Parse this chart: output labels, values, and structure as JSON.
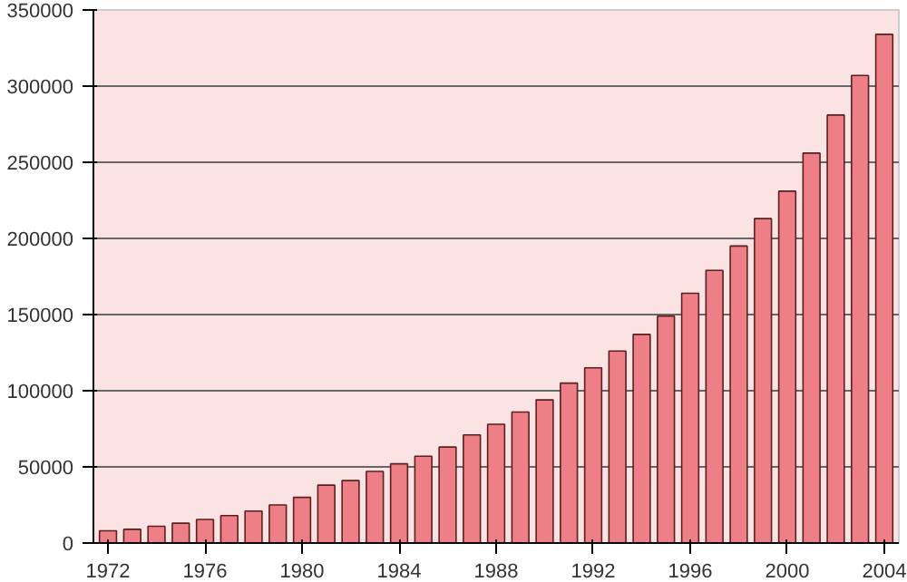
{
  "chart_data": {
    "type": "bar",
    "x": [
      1972,
      1973,
      1974,
      1975,
      1976,
      1977,
      1978,
      1979,
      1980,
      1981,
      1982,
      1983,
      1984,
      1985,
      1986,
      1987,
      1988,
      1989,
      1990,
      1991,
      1992,
      1993,
      1994,
      1995,
      1996,
      1997,
      1998,
      1999,
      2000,
      2001,
      2002,
      2003,
      2004
    ],
    "values": [
      8000,
      9000,
      11000,
      13000,
      15500,
      18000,
      21000,
      25000,
      30000,
      38000,
      41000,
      47000,
      52000,
      57000,
      63000,
      71000,
      78000,
      86000,
      94000,
      105000,
      115000,
      126000,
      137000,
      149000,
      164000,
      179000,
      195000,
      213000,
      231000,
      256000,
      281000,
      307000,
      334000
    ],
    "color": "#ef7f86",
    "xlim": [
      1971.4,
      2004.6
    ],
    "xticks": [
      1972,
      1976,
      1980,
      1984,
      1988,
      1992,
      1996,
      2000,
      2004
    ],
    "ylim": [
      0,
      350000
    ],
    "yticks": [
      0,
      50000,
      100000,
      150000,
      200000,
      250000,
      300000,
      350000
    ],
    "grid": "y"
  }
}
